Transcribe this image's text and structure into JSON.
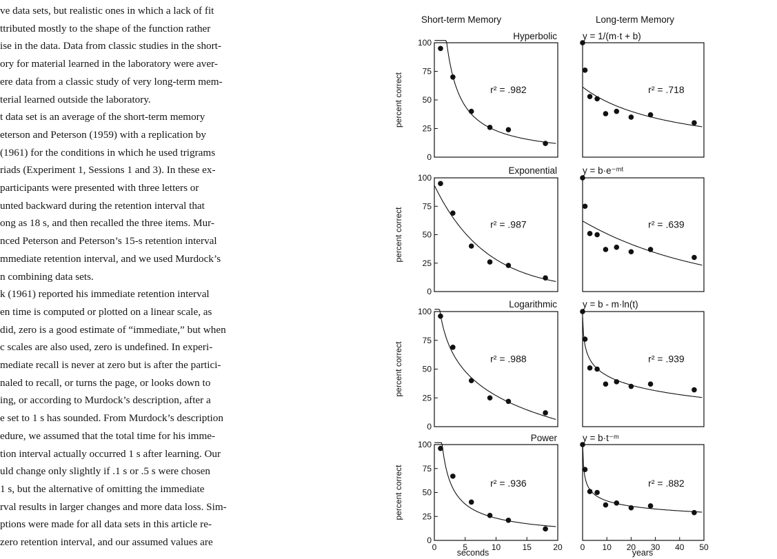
{
  "text_lines": [
    "ve data sets, but realistic ones in which a lack of fit",
    "ttributed mostly to the shape of the function rather",
    "ise in the data. Data from classic studies in the short-",
    "ory for material learned in the laboratory were aver-",
    "ere data from a classic study of very long-term mem-",
    "terial learned outside the laboratory.",
    "t data set is an average of the short-term memory",
    "eterson and Peterson (1959) with a replication by",
    "(1961) for the conditions in which he used trigrams",
    "riads (Experiment 1, Sessions 1 and 3). In these ex-",
    " participants were presented with three letters or",
    "unted backward during the retention interval that",
    "ong as 18 s, and then recalled the three items. Mur-",
    "nced Peterson and Peterson’s 15-s retention interval",
    "mmediate retention interval, and we used Murdock’s",
    "n combining data sets.",
    "k (1961) reported his immediate retention interval",
    "en time is computed or plotted on a linear scale, as",
    "did, zero is a good estimate of “immediate,” but when",
    "c scales are also used, zero is undefined. In experi-",
    "mediate recall is never at zero but is after the partici-",
    "naled to recall, or turns the page, or looks down to",
    "ing, or according to Murdock’s description, after a",
    "e set to 1 s has sounded. From Murdock’s description",
    "edure, we assumed that the total time for his imme-",
    "tion interval actually occurred 1 s after learning. Our",
    "uld change only slightly if .1 s or .5 s were chosen",
    " 1 s, but the alternative of omitting the immediate",
    "rval results in larger changes and more data loss. Sim-",
    "ptions were made for all data sets in this article re-",
    "zero retention interval, and our assumed values are"
  ],
  "figure": {
    "col_headers": [
      "Short-term Memory",
      "Long-term Memory"
    ],
    "y_axis_label": "percent correct",
    "x_axis_labels": [
      "seconds",
      "years"
    ]
  },
  "chart_data": [
    {
      "type": "scatter",
      "name": "Hyperbolic",
      "equation": "y = 1/(m·t + b)",
      "panel": "short-term",
      "points": [
        [
          1,
          95
        ],
        [
          3,
          70
        ],
        [
          6,
          40
        ],
        [
          9,
          26
        ],
        [
          12,
          24
        ],
        [
          18,
          12
        ]
      ],
      "fit": "hyperbolic",
      "r2": "r² = .982",
      "xlim": [
        0,
        20
      ],
      "ylim": [
        0,
        100
      ],
      "y_ticks": [
        "100",
        "75",
        "50",
        "25",
        "0"
      ],
      "x_ticks": []
    },
    {
      "type": "scatter",
      "name": "Hyperbolic",
      "panel": "long-term",
      "points": [
        [
          0,
          100
        ],
        [
          1,
          76
        ],
        [
          3,
          53
        ],
        [
          6,
          51
        ],
        [
          9.5,
          38
        ],
        [
          14,
          40
        ],
        [
          20,
          35
        ],
        [
          28,
          37
        ],
        [
          46,
          30
        ]
      ],
      "fit": "hyperbolic",
      "r2": "r² = .718",
      "xlim": [
        0,
        50
      ],
      "ylim": [
        0,
        100
      ]
    },
    {
      "type": "scatter",
      "name": "Exponential",
      "equation": "y = b·e⁻ᵐᵗ",
      "panel": "short-term",
      "points": [
        [
          1,
          95
        ],
        [
          3,
          69
        ],
        [
          6,
          40
        ],
        [
          9,
          26
        ],
        [
          12,
          23
        ],
        [
          18,
          12
        ]
      ],
      "fit": "exponential",
      "r2": "r² = .987",
      "xlim": [
        0,
        20
      ],
      "ylim": [
        0,
        100
      ],
      "y_ticks": [
        "100",
        "75",
        "50",
        "25",
        "0"
      ],
      "x_ticks": []
    },
    {
      "type": "scatter",
      "name": "Exponential",
      "panel": "long-term",
      "points": [
        [
          0,
          100
        ],
        [
          1,
          75
        ],
        [
          3,
          51
        ],
        [
          6,
          50
        ],
        [
          9.5,
          37
        ],
        [
          14,
          39
        ],
        [
          20,
          35
        ],
        [
          28,
          37
        ],
        [
          46,
          30
        ]
      ],
      "fit": "exponential",
      "r2": "r² = .639",
      "xlim": [
        0,
        50
      ],
      "ylim": [
        0,
        100
      ]
    },
    {
      "type": "scatter",
      "name": "Logarithmic",
      "equation": "y = b - m·ln(t)",
      "panel": "short-term",
      "points": [
        [
          1,
          96
        ],
        [
          3,
          69
        ],
        [
          6,
          40
        ],
        [
          9,
          25
        ],
        [
          12,
          22
        ],
        [
          18,
          12
        ]
      ],
      "fit": "logarithmic",
      "r2": "r² = .988",
      "xlim": [
        0,
        20
      ],
      "ylim": [
        0,
        100
      ],
      "y_ticks": [
        "100",
        "75",
        "50",
        "25",
        "0"
      ],
      "x_ticks": []
    },
    {
      "type": "scatter",
      "name": "Logarithmic",
      "panel": "long-term",
      "points": [
        [
          0,
          100
        ],
        [
          1,
          76
        ],
        [
          3,
          51
        ],
        [
          6,
          50
        ],
        [
          9.5,
          37
        ],
        [
          14,
          39
        ],
        [
          20,
          35
        ],
        [
          28,
          37
        ],
        [
          46,
          32
        ]
      ],
      "fit": "logarithmic",
      "r2": "r² = .939",
      "xlim": [
        0,
        50
      ],
      "ylim": [
        0,
        100
      ]
    },
    {
      "type": "scatter",
      "name": "Power",
      "equation": "y = b·t⁻ᵐ",
      "panel": "short-term",
      "points": [
        [
          1,
          96
        ],
        [
          3,
          67
        ],
        [
          6,
          40
        ],
        [
          9,
          26
        ],
        [
          12,
          21
        ],
        [
          18,
          12
        ]
      ],
      "fit": "power",
      "r2": "r² = .936",
      "xlim": [
        0,
        20
      ],
      "ylim": [
        0,
        100
      ],
      "y_ticks": [
        "100",
        "75",
        "50",
        "25",
        "0"
      ],
      "x_ticks": [
        "0",
        "5",
        "10",
        "15",
        "20"
      ]
    },
    {
      "type": "scatter",
      "name": "Power",
      "panel": "long-term",
      "points": [
        [
          0,
          100
        ],
        [
          1,
          74
        ],
        [
          3,
          51
        ],
        [
          6,
          50
        ],
        [
          9.5,
          37
        ],
        [
          14,
          39
        ],
        [
          20,
          34
        ],
        [
          28,
          36
        ],
        [
          46,
          29
        ]
      ],
      "fit": "power",
      "r2": "r² = .882",
      "xlim": [
        0,
        50
      ],
      "ylim": [
        0,
        100
      ],
      "x_ticks": [
        "0",
        "10",
        "20",
        "30",
        "40",
        "50"
      ]
    }
  ]
}
